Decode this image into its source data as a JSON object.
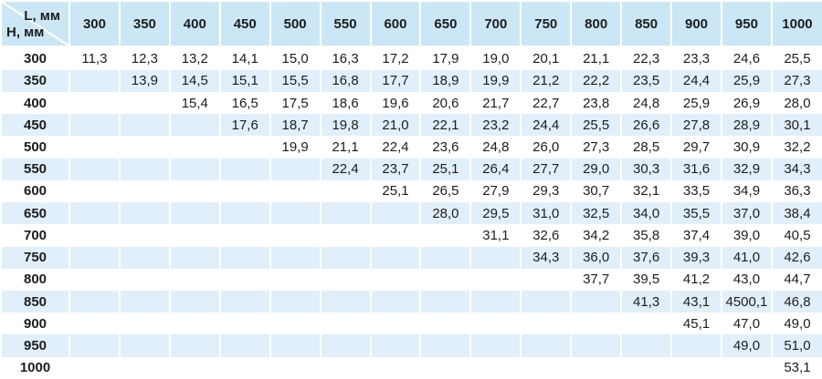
{
  "colors": {
    "header_bg": "#cbe7f5",
    "stripe_bg": "#e1effa",
    "row_bg": "#ffffff",
    "separator": "#ffffff",
    "text": "#1d1d1d"
  },
  "table": {
    "corner": {
      "col_label": "L, мм",
      "row_label": "H, мм"
    },
    "columns": [
      "300",
      "350",
      "400",
      "450",
      "500",
      "550",
      "600",
      "650",
      "700",
      "750",
      "800",
      "850",
      "900",
      "950",
      "1000"
    ],
    "rows": [
      {
        "label": "300",
        "values": [
          "11,3",
          "12,3",
          "13,2",
          "14,1",
          "15,0",
          "16,3",
          "17,2",
          "17,9",
          "19,0",
          "20,1",
          "21,1",
          "22,3",
          "23,3",
          "24,6",
          "25,5"
        ]
      },
      {
        "label": "350",
        "values": [
          "",
          "13,9",
          "14,5",
          "15,1",
          "15,5",
          "16,8",
          "17,7",
          "18,9",
          "19,9",
          "21,2",
          "22,2",
          "23,5",
          "24,4",
          "25,9",
          "27,3"
        ]
      },
      {
        "label": "400",
        "values": [
          "",
          "",
          "15,4",
          "16,5",
          "17,5",
          "18,6",
          "19,6",
          "20,6",
          "21,7",
          "22,7",
          "23,8",
          "24,8",
          "25,9",
          "26,9",
          "28,0"
        ]
      },
      {
        "label": "450",
        "values": [
          "",
          "",
          "",
          "17,6",
          "18,7",
          "19,8",
          "21,0",
          "22,1",
          "23,2",
          "24,4",
          "25,5",
          "26,6",
          "27,8",
          "28,9",
          "30,1"
        ]
      },
      {
        "label": "500",
        "values": [
          "",
          "",
          "",
          "",
          "19,9",
          "21,1",
          "22,4",
          "23,6",
          "24,8",
          "26,0",
          "27,3",
          "28,5",
          "29,7",
          "30,9",
          "32,2"
        ]
      },
      {
        "label": "550",
        "values": [
          "",
          "",
          "",
          "",
          "",
          "22,4",
          "23,7",
          "25,1",
          "26,4",
          "27,7",
          "29,0",
          "30,3",
          "31,6",
          "32,9",
          "34,3"
        ]
      },
      {
        "label": "600",
        "values": [
          "",
          "",
          "",
          "",
          "",
          "",
          "25,1",
          "26,5",
          "27,9",
          "29,3",
          "30,7",
          "32,1",
          "33,5",
          "34,9",
          "36,3"
        ]
      },
      {
        "label": "650",
        "values": [
          "",
          "",
          "",
          "",
          "",
          "",
          "",
          "28,0",
          "29,5",
          "31,0",
          "32,5",
          "34,0",
          "35,5",
          "37,0",
          "38,4"
        ]
      },
      {
        "label": "700",
        "values": [
          "",
          "",
          "",
          "",
          "",
          "",
          "",
          "",
          "31,1",
          "32,6",
          "34,2",
          "35,8",
          "37,4",
          "39,0",
          "40,5"
        ]
      },
      {
        "label": "750",
        "values": [
          "",
          "",
          "",
          "",
          "",
          "",
          "",
          "",
          "",
          "34,3",
          "36,0",
          "37,6",
          "39,3",
          "41,0",
          "42,6"
        ]
      },
      {
        "label": "800",
        "values": [
          "",
          "",
          "",
          "",
          "",
          "",
          "",
          "",
          "",
          "",
          "37,7",
          "39,5",
          "41,2",
          "43,0",
          "44,7"
        ]
      },
      {
        "label": "850",
        "values": [
          "",
          "",
          "",
          "",
          "",
          "",
          "",
          "",
          "",
          "",
          "",
          "41,3",
          "43,1",
          "4500,1",
          "46,8"
        ]
      },
      {
        "label": "900",
        "values": [
          "",
          "",
          "",
          "",
          "",
          "",
          "",
          "",
          "",
          "",
          "",
          "",
          "45,1",
          "47,0",
          "49,0"
        ]
      },
      {
        "label": "950",
        "values": [
          "",
          "",
          "",
          "",
          "",
          "",
          "",
          "",
          "",
          "",
          "",
          "",
          "",
          "49,0",
          "51,0"
        ]
      },
      {
        "label": "1000",
        "values": [
          "",
          "",
          "",
          "",
          "",
          "",
          "",
          "",
          "",
          "",
          "",
          "",
          "",
          "",
          "53,1"
        ]
      }
    ]
  }
}
